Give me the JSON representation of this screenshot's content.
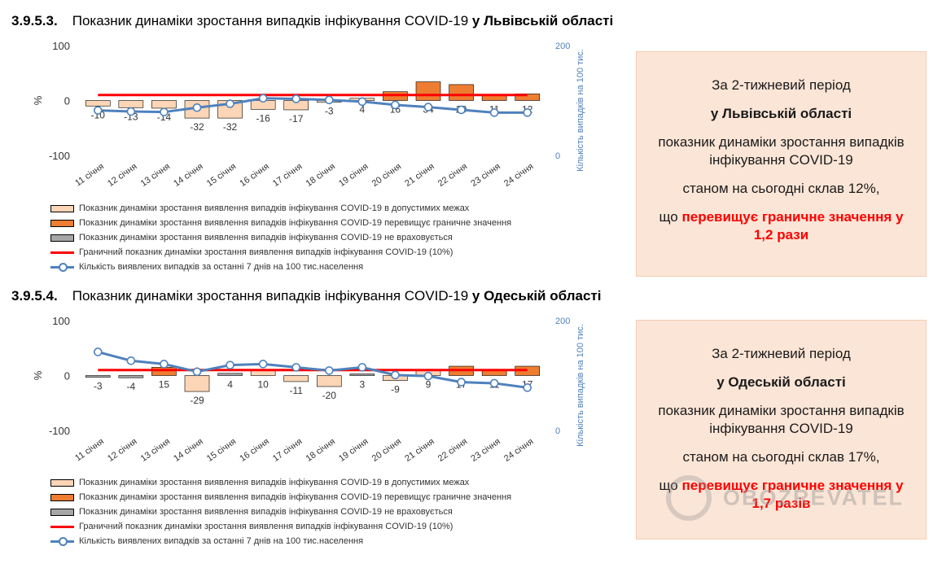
{
  "sections": [
    {
      "heading_num": "3.9.5.3.",
      "heading_text": "Показник динаміки зростання випадків інфікування COVID-19 ",
      "heading_region": "у Львівській області",
      "info": {
        "line1": "За 2-тижневий період",
        "line2": "у Львівській області",
        "line3": "показник динаміки зростання випадків інфікування COVID-19",
        "line4": "станом на сьогодні склав 12%,",
        "line5_prefix": "що ",
        "line5_red": "перевищує граничне значення у 1,2 рази"
      }
    },
    {
      "heading_num": "3.9.5.4.",
      "heading_text": "Показник динаміки зростання випадків інфікування COVID-19 ",
      "heading_region": "у Одеській області",
      "info": {
        "line1": "За 2-тижневий період",
        "line2": "у Одеській області",
        "line3": "показник динаміки зростання випадків інфікування COVID-19",
        "line4": "станом на сьогодні склав 17%,",
        "line5_prefix": "що ",
        "line5_red": "перевищує граничне значення у 1,7 разів"
      }
    }
  ],
  "legend": {
    "light": "Показник динаміки зростання виявлення випадків інфікування COVID-19 в допустимих межах",
    "dark": "Показник динаміки зростання виявлення випадків інфікування COVID-19 перевищує граничне значення",
    "gray": "Показник динаміки зростання виявлення випадків інфікування COVID-19 не враховується",
    "red": "Граничний показник динаміки зростання виявлення випадків інфікування COVID-19 (10%)",
    "blue": "Кількість виявлених випадків за останні 7 днів на 100 тис.населення"
  },
  "watermark": "OBOZREVATEL",
  "colors": {
    "light_bar": "#fbd5b5",
    "dark_bar": "#ed7d31",
    "threshold": "#ff0000",
    "line": "#4f81bd",
    "right_axis": "#4f81bd"
  },
  "chart_data": [
    {
      "type": "bar",
      "title": "Показник динаміки зростання випадків інфікування COVID-19 у Львівській області",
      "categories": [
        "11 січня",
        "12 січня",
        "13 січня",
        "14 січня",
        "15 січня",
        "16 січня",
        "17 січня",
        "18 січня",
        "19 січня",
        "20 січня",
        "21 січня",
        "22 січня",
        "23 січня",
        "24 січня"
      ],
      "values": [
        -10,
        -13,
        -14,
        -32,
        -32,
        -16,
        -17,
        -3,
        4,
        16,
        34,
        29,
        11,
        12
      ],
      "bar_kind": [
        "light",
        "light",
        "light",
        "light",
        "light",
        "light",
        "light",
        "light",
        "light",
        "dark",
        "dark",
        "dark",
        "dark",
        "dark"
      ],
      "threshold": 10,
      "ylabel": "%",
      "ylim": [
        -100,
        100
      ],
      "yticks": [
        100,
        0,
        -100
      ],
      "line_series": {
        "name": "Кількість виявлених випадків за останні 7 днів на 100 тис.населення",
        "values": [
          82,
          80,
          79,
          87,
          94,
          104,
          103,
          101,
          98,
          92,
          88,
          83,
          78,
          78
        ]
      },
      "y2label": "Кількість випадків на 100 тис.",
      "y2lim": [
        0,
        200
      ],
      "y2ticks": [
        200,
        0
      ]
    },
    {
      "type": "bar",
      "title": "Показник динаміки зростання випадків інфікування COVID-19 у Одеській області",
      "categories": [
        "11 січня",
        "12 січня",
        "13 січня",
        "14 січня",
        "15 січня",
        "16 січня",
        "17 січня",
        "18 січня",
        "19 січня",
        "20 січня",
        "21 січня",
        "22 січня",
        "23 січня",
        "24 січня"
      ],
      "values": [
        -3,
        -4,
        15,
        -29,
        4,
        10,
        -11,
        -20,
        3,
        -9,
        9,
        17,
        11,
        17
      ],
      "bar_kind": [
        "gray",
        "gray",
        "dark",
        "light",
        "gray",
        "light",
        "light",
        "light",
        "gray",
        "light",
        "light",
        "dark",
        "dark",
        "dark"
      ],
      "threshold": 10,
      "ylabel": "%",
      "ylim": [
        -100,
        100
      ],
      "yticks": [
        100,
        0,
        -100
      ],
      "line_series": {
        "name": "Кількість виявлених випадків за останні 7 днів на 100 тис.населення",
        "values": [
          143,
          127,
          121,
          107,
          119,
          121,
          115,
          109,
          115,
          101,
          99,
          88,
          86,
          78
        ]
      },
      "y2label": "Кількість випадків на 100 тис.",
      "y2lim": [
        0,
        200
      ],
      "y2ticks": [
        200,
        0
      ]
    }
  ]
}
